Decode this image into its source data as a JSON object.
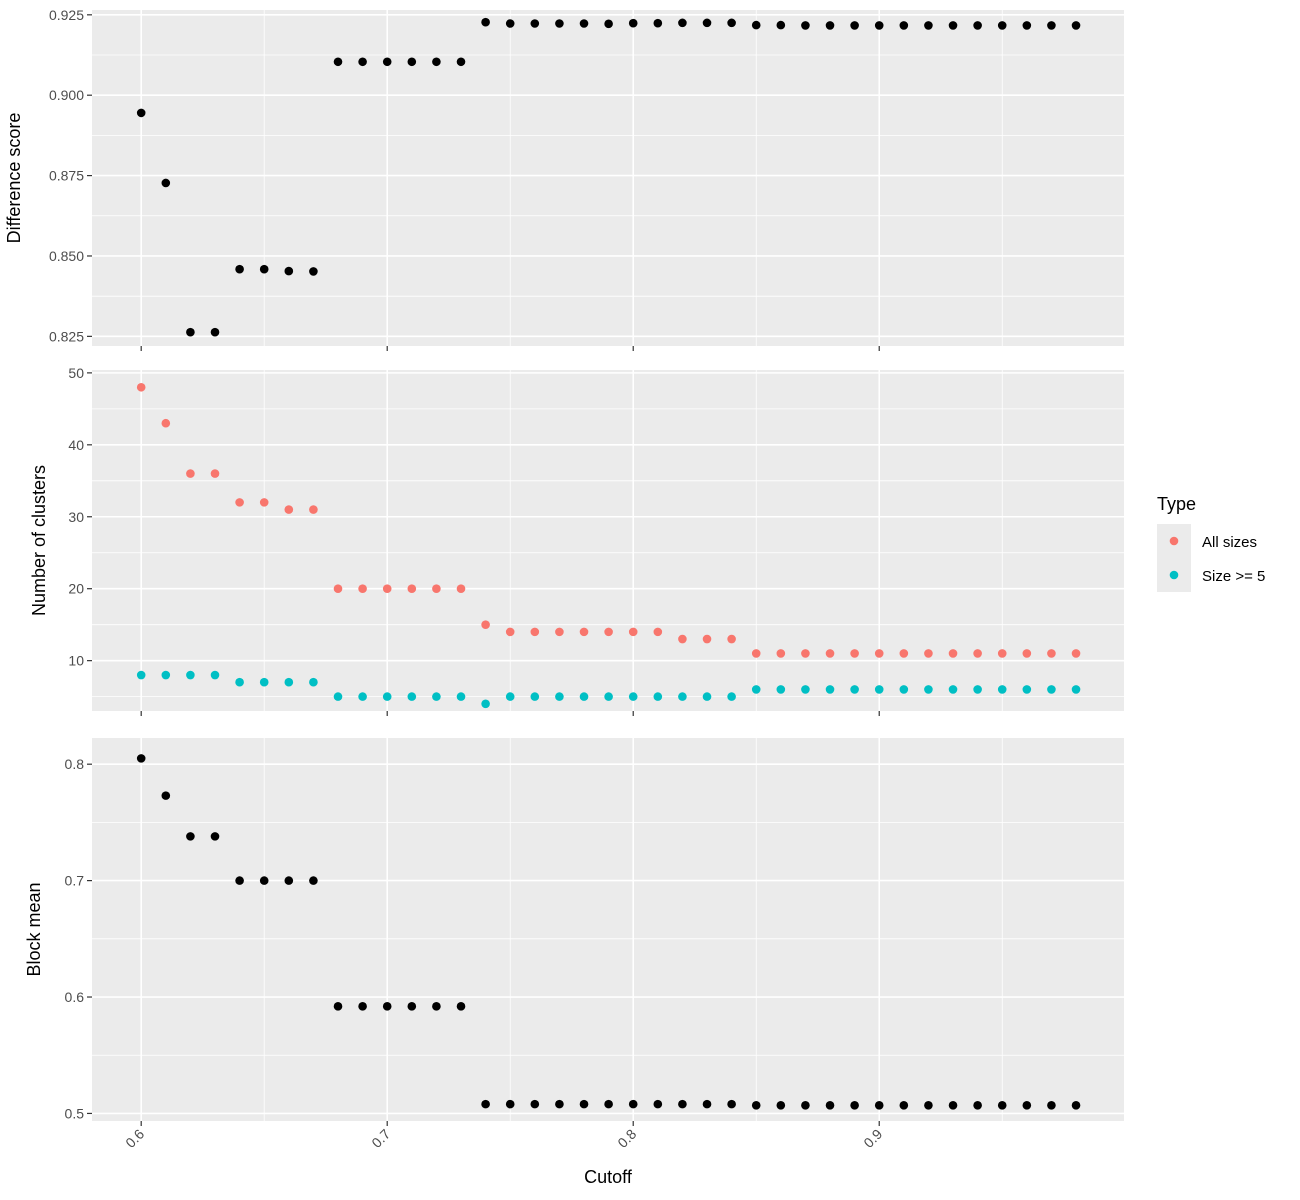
{
  "chart_data": {
    "type": "scatter",
    "xlabel": "Cutoff",
    "x_ticks": [
      0.6,
      0.7,
      0.8,
      0.9
    ],
    "x_tick_labels": [
      "0.6",
      "0.7",
      "0.8",
      "0.9"
    ],
    "xlim": [
      0.58,
      0.9995
    ],
    "x": [
      0.6,
      0.61,
      0.62,
      0.63,
      0.64,
      0.65,
      0.66,
      0.67,
      0.68,
      0.69,
      0.7,
      0.71,
      0.72,
      0.73,
      0.74,
      0.75,
      0.76,
      0.77,
      0.78,
      0.79,
      0.8,
      0.81,
      0.82,
      0.83,
      0.84,
      0.85,
      0.86,
      0.87,
      0.88,
      0.89,
      0.9,
      0.91,
      0.92,
      0.93,
      0.94,
      0.95,
      0.96,
      0.97,
      0.98
    ],
    "grid": true,
    "panels": [
      {
        "ylabel": "Difference score",
        "ylim": [
          0.822,
          0.9265
        ],
        "y_ticks": [
          0.825,
          0.85,
          0.875,
          0.9,
          0.925
        ],
        "y_tick_labels": [
          "0.825",
          "0.850",
          "0.875",
          "0.900",
          "0.925"
        ],
        "series": [
          {
            "color": "#000000",
            "values": [
              0.8945,
              0.8727,
              0.8263,
              0.8263,
              0.8459,
              0.8459,
              0.8453,
              0.8452,
              0.9104,
              0.9104,
              0.9104,
              0.9104,
              0.9104,
              0.9104,
              0.9227,
              0.9223,
              0.9223,
              0.9223,
              0.9223,
              0.9222,
              0.9224,
              0.9224,
              0.9225,
              0.9225,
              0.9225,
              0.9218,
              0.9218,
              0.9217,
              0.9217,
              0.9217,
              0.9217,
              0.9217,
              0.9217,
              0.9217,
              0.9217,
              0.9217,
              0.9217,
              0.9217,
              0.9217
            ]
          }
        ]
      },
      {
        "ylabel": "Number of clusters",
        "ylim": [
          3,
          50.4
        ],
        "y_ticks": [
          10,
          20,
          30,
          40,
          50
        ],
        "y_tick_labels": [
          "10",
          "20",
          "30",
          "40",
          "50"
        ],
        "series": [
          {
            "name": "All sizes",
            "color": "#F8766D",
            "values": [
              48,
              43,
              36,
              36,
              32,
              32,
              31,
              31,
              20,
              20,
              20,
              20,
              20,
              20,
              15,
              14,
              14,
              14,
              14,
              14,
              14,
              14,
              13,
              13,
              13,
              11,
              11,
              11,
              11,
              11,
              11,
              11,
              11,
              11,
              11,
              11,
              11,
              11,
              11
            ]
          },
          {
            "name": "Size >= 5",
            "color": "#00BFC4",
            "values": [
              8,
              8,
              8,
              8,
              7,
              7,
              7,
              7,
              5,
              5,
              5,
              5,
              5,
              5,
              4,
              5,
              5,
              5,
              5,
              5,
              5,
              5,
              5,
              5,
              5,
              6,
              6,
              6,
              6,
              6,
              6,
              6,
              6,
              6,
              6,
              6,
              6,
              6,
              6
            ]
          }
        ]
      },
      {
        "ylabel": "Block mean",
        "ylim": [
          0.4935,
          0.8225
        ],
        "y_ticks": [
          0.5,
          0.6,
          0.7,
          0.8
        ],
        "y_tick_labels": [
          "0.5",
          "0.6",
          "0.7",
          "0.8"
        ],
        "series": [
          {
            "color": "#000000",
            "values": [
              0.805,
              0.773,
              0.738,
              0.738,
              0.7,
              0.7,
              0.7,
              0.7,
              0.592,
              0.592,
              0.592,
              0.592,
              0.592,
              0.592,
              0.508,
              0.508,
              0.508,
              0.508,
              0.508,
              0.508,
              0.508,
              0.508,
              0.508,
              0.508,
              0.508,
              0.507,
              0.507,
              0.507,
              0.507,
              0.507,
              0.507,
              0.507,
              0.507,
              0.507,
              0.507,
              0.507,
              0.507,
              0.507,
              0.507
            ]
          }
        ]
      }
    ],
    "legend": {
      "title": "Type",
      "position": "right",
      "entries": [
        {
          "label": "All sizes",
          "color": "#F8766D"
        },
        {
          "label": "Size >= 5",
          "color": "#00BFC4"
        }
      ]
    }
  }
}
